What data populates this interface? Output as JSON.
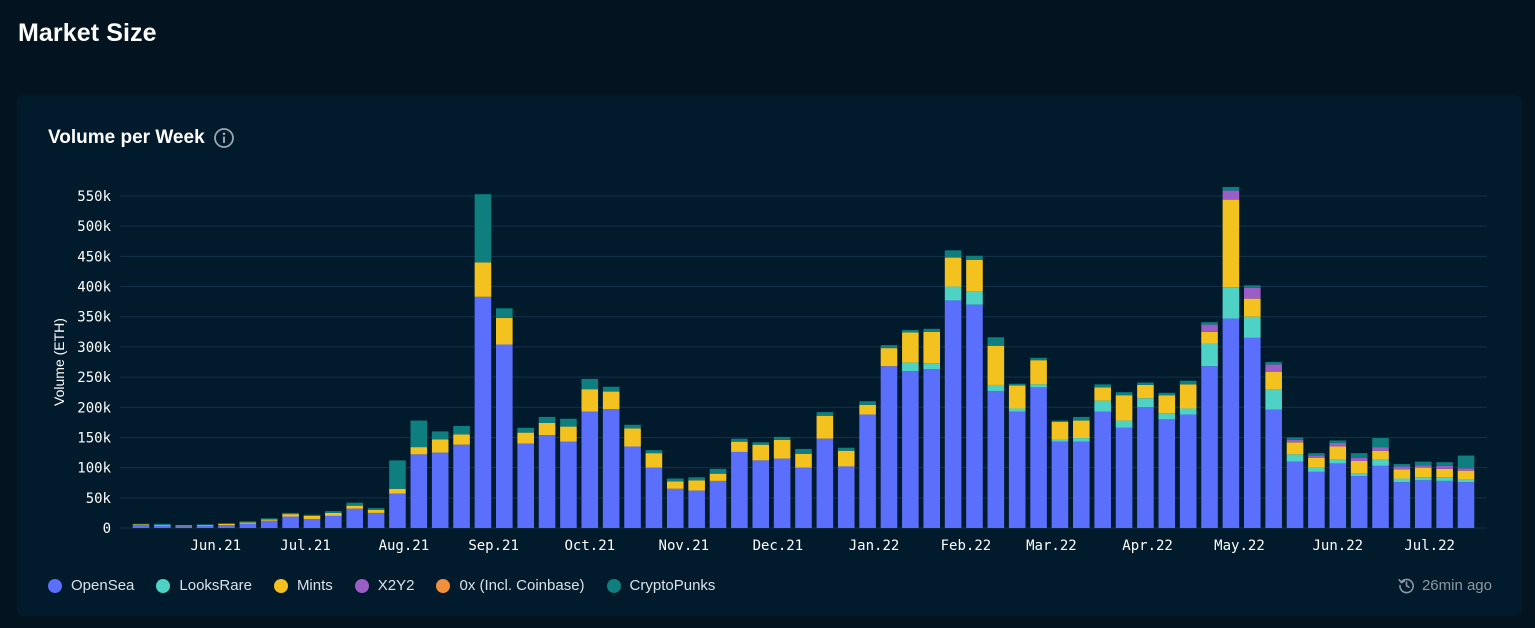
{
  "page_title": "Market Size",
  "card": {
    "title": "Volume per Week",
    "info_icon": "info-circle-icon",
    "updated_icon": "clock-refresh-icon",
    "updated_text": "26min ago"
  },
  "colors": {
    "background": "#031320",
    "card": "#011a2c",
    "grid": "#153149",
    "opensea": "#5a6ffc",
    "looksrare": "#4dd2c5",
    "mints": "#f4c21e",
    "x2y2": "#9b5ec6",
    "zero_x": "#f28f3b",
    "cryptopunks": "#0e7e7e"
  },
  "legend": [
    {
      "label": "OpenSea",
      "color": "#5a6ffc"
    },
    {
      "label": "LooksRare",
      "color": "#4dd2c5"
    },
    {
      "label": "Mints",
      "color": "#f4c21e"
    },
    {
      "label": "X2Y2",
      "color": "#9b5ec6"
    },
    {
      "label": "0x (Incl. Coinbase)",
      "color": "#f28f3b"
    },
    {
      "label": "CryptoPunks",
      "color": "#0e7e7e"
    }
  ],
  "chart_data": {
    "type": "bar",
    "stacked": true,
    "title": "Volume per Week",
    "ylabel": "Volume (ETH)",
    "xlabel": "",
    "ylim": [
      0,
      550000
    ],
    "yticks": [
      0,
      50000,
      100000,
      150000,
      200000,
      250000,
      300000,
      350000,
      400000,
      450000,
      500000,
      550000
    ],
    "ytick_labels": [
      "0",
      "50k",
      "100k",
      "150k",
      "200k",
      "250k",
      "300k",
      "350k",
      "400k",
      "450k",
      "500k",
      "550k"
    ],
    "xtick_labels": [
      {
        "label": "Jun.21",
        "index": 3.5
      },
      {
        "label": "Jul.21",
        "index": 7.7
      },
      {
        "label": "Aug.21",
        "index": 12.3
      },
      {
        "label": "Sep.21",
        "index": 16.5
      },
      {
        "label": "Oct.21",
        "index": 21
      },
      {
        "label": "Nov.21",
        "index": 25.4
      },
      {
        "label": "Dec.21",
        "index": 29.8
      },
      {
        "label": "Jan.22",
        "index": 34.3
      },
      {
        "label": "Feb.22",
        "index": 38.6
      },
      {
        "label": "Mar.22",
        "index": 42.6
      },
      {
        "label": "Apr.22",
        "index": 47.1
      },
      {
        "label": "May.22",
        "index": 51.4
      },
      {
        "label": "Jun.22",
        "index": 56
      },
      {
        "label": "Jul.22",
        "index": 60.3
      }
    ],
    "grid": true,
    "legend_position": "bottom-left",
    "series": [
      {
        "name": "OpenSea",
        "values": [
          5000,
          4000,
          3000,
          4000,
          5000,
          7000,
          12000,
          19000,
          15000,
          20000,
          32000,
          25000,
          57000,
          122000,
          125000,
          138000,
          383000,
          304000,
          140000,
          154000,
          143000,
          193000,
          197000,
          135000,
          100000,
          65000,
          62000,
          78000,
          126000,
          112000,
          115000,
          100000,
          148000,
          102000,
          188000,
          268000,
          260000,
          263000,
          377000,
          370000,
          227000,
          193000,
          233000,
          143000,
          143000,
          193000,
          166000,
          200000,
          180000,
          188000,
          268000,
          347000,
          315000,
          196000,
          110000,
          93000,
          107000,
          86000,
          103000,
          76000,
          79000,
          78000,
          76000
        ]
      },
      {
        "name": "LooksRare",
        "values": [
          0,
          0,
          0,
          0,
          0,
          0,
          0,
          0,
          0,
          0,
          0,
          0,
          0,
          0,
          0,
          0,
          0,
          0,
          0,
          0,
          0,
          0,
          0,
          0,
          0,
          0,
          0,
          0,
          0,
          0,
          0,
          0,
          0,
          0,
          0,
          0,
          14000,
          10000,
          23000,
          22000,
          10000,
          5000,
          5000,
          3000,
          6000,
          18000,
          12000,
          15000,
          10000,
          10000,
          37000,
          52000,
          35000,
          33000,
          12000,
          7000,
          6000,
          5000,
          10000,
          6000,
          5000,
          6000,
          4000
        ]
      },
      {
        "name": "Mints",
        "values": [
          1000,
          1000,
          1000,
          1000,
          2000,
          2000,
          2000,
          4000,
          5000,
          5000,
          5000,
          5000,
          8000,
          12000,
          22000,
          17000,
          57000,
          44000,
          18000,
          20000,
          25000,
          37000,
          29000,
          30000,
          24000,
          12000,
          17000,
          12000,
          17000,
          26000,
          31000,
          23000,
          38000,
          26000,
          16000,
          30000,
          50000,
          52000,
          48000,
          52000,
          65000,
          38000,
          40000,
          30000,
          29000,
          22000,
          42000,
          22000,
          30000,
          40000,
          20000,
          145000,
          30000,
          30000,
          20000,
          16000,
          22000,
          20000,
          15000,
          15000,
          16000,
          14000,
          15000
        ]
      },
      {
        "name": "X2Y2",
        "values": [
          0,
          0,
          0,
          0,
          0,
          0,
          0,
          0,
          0,
          0,
          0,
          0,
          0,
          0,
          0,
          0,
          0,
          0,
          0,
          0,
          0,
          0,
          0,
          0,
          0,
          0,
          0,
          0,
          0,
          0,
          0,
          0,
          0,
          0,
          0,
          0,
          0,
          0,
          0,
          0,
          0,
          0,
          0,
          0,
          0,
          0,
          0,
          0,
          0,
          0,
          12000,
          15000,
          18000,
          12000,
          4000,
          4000,
          6000,
          5000,
          6000,
          5000,
          4000,
          5000,
          4000
        ]
      },
      {
        "name": "0x (Incl. Coinbase)",
        "values": [
          0,
          0,
          0,
          0,
          0,
          0,
          0,
          0,
          0,
          0,
          0,
          0,
          0,
          0,
          0,
          0,
          0,
          0,
          0,
          0,
          0,
          0,
          0,
          0,
          0,
          0,
          0,
          0,
          0,
          0,
          0,
          0,
          0,
          0,
          0,
          0,
          0,
          0,
          0,
          0,
          0,
          0,
          0,
          0,
          0,
          0,
          0,
          0,
          0,
          0,
          0,
          0,
          0,
          0,
          0,
          0,
          0,
          0,
          0,
          0,
          0,
          0,
          0
        ]
      },
      {
        "name": "CryptoPunks",
        "values": [
          1000,
          2000,
          1000,
          1000,
          1000,
          2000,
          2000,
          2000,
          2000,
          3000,
          5000,
          3000,
          47000,
          44000,
          13000,
          14000,
          113000,
          16000,
          8000,
          10000,
          13000,
          17000,
          8000,
          6000,
          5000,
          5000,
          5000,
          8000,
          5000,
          4000,
          5000,
          8000,
          6000,
          5000,
          6000,
          5000,
          4000,
          5000,
          12000,
          7000,
          14000,
          3000,
          4000,
          2000,
          6000,
          5000,
          5000,
          4000,
          4000,
          6000,
          4000,
          6000,
          4000,
          4000,
          4000,
          4000,
          4000,
          8000,
          15000,
          4000,
          6000,
          6000,
          21000
        ]
      }
    ]
  }
}
